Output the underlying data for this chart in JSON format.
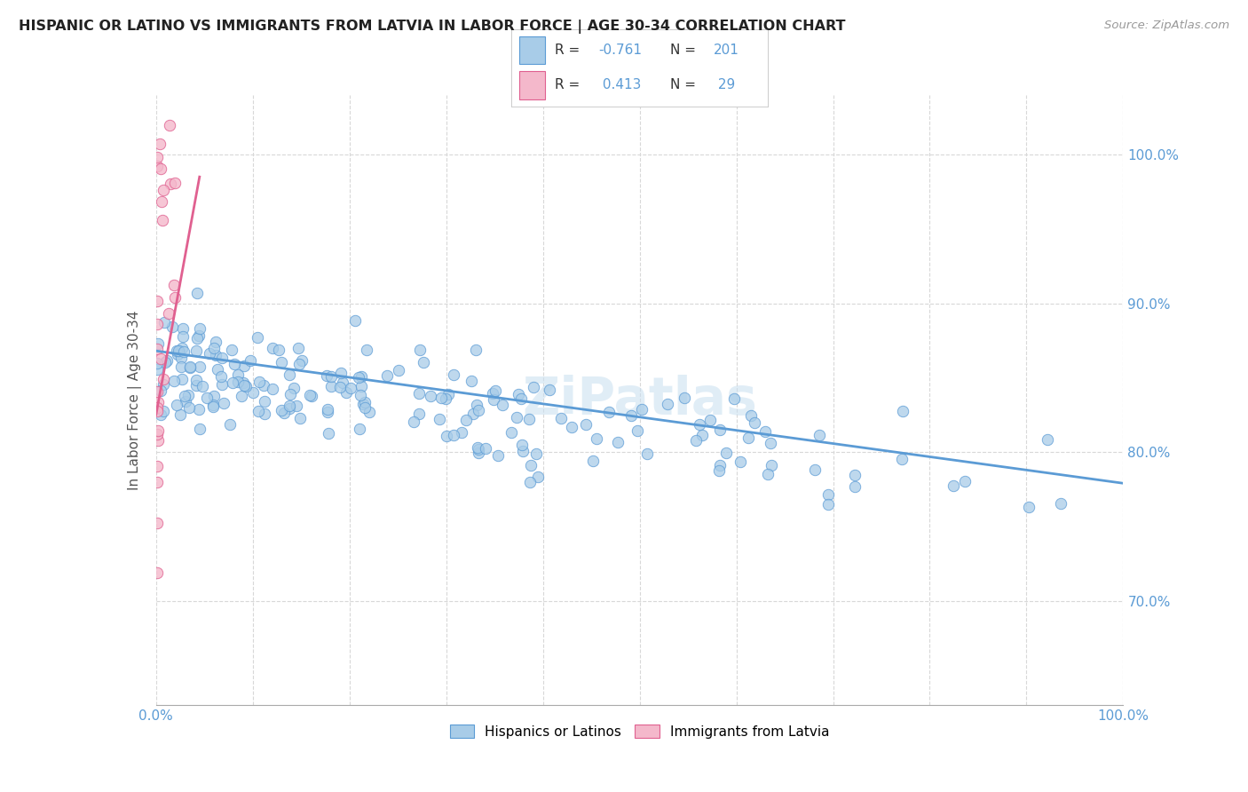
{
  "title": "HISPANIC OR LATINO VS IMMIGRANTS FROM LATVIA IN LABOR FORCE | AGE 30-34 CORRELATION CHART",
  "source": "Source: ZipAtlas.com",
  "ylabel": "In Labor Force | Age 30-34",
  "xlim": [
    0.0,
    1.0
  ],
  "ylim": [
    0.63,
    1.04
  ],
  "xticks": [
    0.0,
    0.1,
    0.2,
    0.3,
    0.4,
    0.5,
    0.6,
    0.7,
    0.8,
    0.9,
    1.0
  ],
  "yticks": [
    0.7,
    0.8,
    0.9,
    1.0
  ],
  "xtick_labels": [
    "0.0%",
    "",
    "",
    "",
    "",
    "",
    "",
    "",
    "",
    "",
    "100.0%"
  ],
  "ytick_labels_right": [
    "70.0%",
    "80.0%",
    "90.0%",
    "100.0%"
  ],
  "blue_fill_color": "#a8cce8",
  "blue_edge_color": "#5b9bd5",
  "pink_fill_color": "#f4b8cb",
  "pink_edge_color": "#e06090",
  "blue_line_color": "#5b9bd5",
  "pink_line_color": "#e06090",
  "right_tick_color": "#5b9bd5",
  "title_color": "#222222",
  "source_color": "#999999",
  "axis_label_color": "#555555",
  "grid_color": "#d8d8d8",
  "legend_text_color": "#333333",
  "blue_R": "-0.761",
  "blue_N": "201",
  "pink_R": "0.413",
  "pink_N": "29",
  "legend_label_blue": "Hispanics or Latinos",
  "legend_label_pink": "Immigrants from Latvia",
  "watermark": "ZiPatlas",
  "blue_trend_x0": 0.0,
  "blue_trend_y0": 0.868,
  "blue_trend_x1": 1.0,
  "blue_trend_y1": 0.779,
  "pink_trend_x0": 0.0,
  "pink_trend_y0": 0.825,
  "pink_trend_x1": 0.045,
  "pink_trend_y1": 0.985,
  "blue_seed": 77,
  "pink_seed": 33,
  "N_blue": 201,
  "N_pink": 29
}
